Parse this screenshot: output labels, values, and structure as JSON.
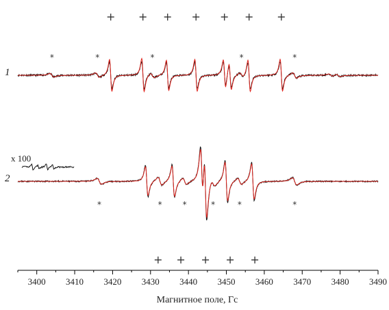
{
  "chart_data": {
    "type": "line",
    "xlabel": "Магнитное поле, Гс",
    "xlim": [
      3395,
      3490
    ],
    "x_ticks": [
      3400,
      3410,
      3420,
      3430,
      3440,
      3450,
      3460,
      3470,
      3480,
      3490
    ],
    "grid": false,
    "series_colors": {
      "experimental": "#111111",
      "simulated": "#e0231c"
    },
    "spectra": [
      {
        "label": "1",
        "plus_markers_x": [
          3419.5,
          3428,
          3434.5,
          3442,
          3449.5,
          3456,
          3464.5
        ],
        "star_markers_x": [
          3404,
          3416,
          3430.5,
          3454,
          3468
        ],
        "lines": [
          {
            "center": 3419.5,
            "amplitude": 1.0
          },
          {
            "center": 3428,
            "amplitude": 1.05
          },
          {
            "center": 3434.5,
            "amplitude": 0.95
          },
          {
            "center": 3442,
            "amplitude": 1.0
          },
          {
            "center": 3449.5,
            "amplitude": 0.9
          },
          {
            "center": 3451,
            "amplitude": 0.85
          },
          {
            "center": 3456,
            "amplitude": 1.0
          },
          {
            "center": 3464.5,
            "amplitude": 1.0
          }
        ]
      },
      {
        "label": "2",
        "scale_label": "x 100",
        "plus_markers_x": [
          3432,
          3438,
          3444.5,
          3451,
          3457.5
        ],
        "star_markers_x": [
          3416.5,
          3432.5,
          3439,
          3446.5,
          3453.5,
          3468
        ],
        "lines": [
          {
            "center": 3429,
            "amplitude": 0.9
          },
          {
            "center": 3436,
            "amplitude": 0.95
          },
          {
            "center": 3443.5,
            "amplitude": 1.6
          },
          {
            "center": 3444.5,
            "amplitude": 2.0
          },
          {
            "center": 3450,
            "amplitude": 1.2
          },
          {
            "center": 3457,
            "amplitude": 1.1
          }
        ]
      }
    ]
  }
}
